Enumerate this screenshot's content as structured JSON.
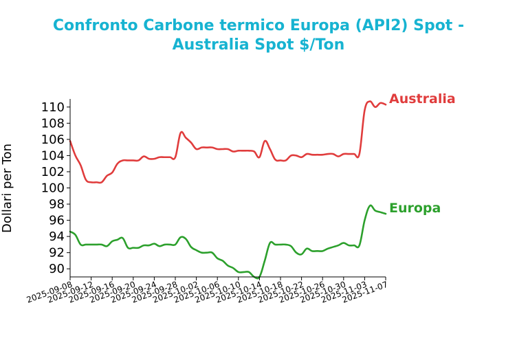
{
  "chart_data": {
    "type": "line",
    "title_lines": [
      "Confronto Carbone termico Europa (API2) Spot -",
      "Australia Spot $/Ton"
    ],
    "title_color": "#17b3d1",
    "xlabel": "",
    "ylabel": "Dollari per Ton",
    "ylim": [
      89,
      111
    ],
    "yticks": [
      90,
      92,
      94,
      96,
      98,
      100,
      102,
      104,
      106,
      108,
      110
    ],
    "xlim": [
      "2025-09-08",
      "2025-11-07"
    ],
    "xticks": [
      "2025-09-08",
      "2025-09-12",
      "2025-09-16",
      "2025-09-20",
      "2025-09-24",
      "2025-09-28",
      "2025-10-02",
      "2025-10-06",
      "2025-10-10",
      "2025-10-14",
      "2025-10-18",
      "2025-10-22",
      "2025-10-26",
      "2025-10-30",
      "2025-11-03",
      "2025-11-07"
    ],
    "grid": false,
    "series": [
      {
        "name": "Australia",
        "color": "#e03c3c",
        "points": [
          [
            "2025-09-08",
            105.8
          ],
          [
            "2025-09-09",
            104.0
          ],
          [
            "2025-09-10",
            102.8
          ],
          [
            "2025-09-11",
            101.0
          ],
          [
            "2025-09-12",
            100.7
          ],
          [
            "2025-09-13",
            100.7
          ],
          [
            "2025-09-14",
            100.7
          ],
          [
            "2025-09-15",
            101.5
          ],
          [
            "2025-09-16",
            101.9
          ],
          [
            "2025-09-17",
            103.0
          ],
          [
            "2025-09-18",
            103.4
          ],
          [
            "2025-09-19",
            103.4
          ],
          [
            "2025-09-20",
            103.4
          ],
          [
            "2025-09-21",
            103.4
          ],
          [
            "2025-09-22",
            103.9
          ],
          [
            "2025-09-23",
            103.6
          ],
          [
            "2025-09-24",
            103.6
          ],
          [
            "2025-09-25",
            103.8
          ],
          [
            "2025-09-26",
            103.8
          ],
          [
            "2025-09-27",
            103.8
          ],
          [
            "2025-09-28",
            103.8
          ],
          [
            "2025-09-29",
            106.8
          ],
          [
            "2025-09-30",
            106.2
          ],
          [
            "2025-10-01",
            105.6
          ],
          [
            "2025-10-02",
            104.8
          ],
          [
            "2025-10-03",
            105.0
          ],
          [
            "2025-10-04",
            105.0
          ],
          [
            "2025-10-05",
            105.0
          ],
          [
            "2025-10-06",
            104.8
          ],
          [
            "2025-10-07",
            104.8
          ],
          [
            "2025-10-08",
            104.8
          ],
          [
            "2025-10-09",
            104.5
          ],
          [
            "2025-10-10",
            104.6
          ],
          [
            "2025-10-11",
            104.6
          ],
          [
            "2025-10-12",
            104.6
          ],
          [
            "2025-10-13",
            104.5
          ],
          [
            "2025-10-14",
            103.8
          ],
          [
            "2025-10-15",
            105.8
          ],
          [
            "2025-10-16",
            104.8
          ],
          [
            "2025-10-17",
            103.5
          ],
          [
            "2025-10-18",
            103.4
          ],
          [
            "2025-10-19",
            103.4
          ],
          [
            "2025-10-20",
            104.0
          ],
          [
            "2025-10-21",
            104.0
          ],
          [
            "2025-10-22",
            103.8
          ],
          [
            "2025-10-23",
            104.2
          ],
          [
            "2025-10-24",
            104.1
          ],
          [
            "2025-10-25",
            104.1
          ],
          [
            "2025-10-26",
            104.1
          ],
          [
            "2025-10-27",
            104.2
          ],
          [
            "2025-10-28",
            104.2
          ],
          [
            "2025-10-29",
            103.9
          ],
          [
            "2025-10-30",
            104.2
          ],
          [
            "2025-10-31",
            104.2
          ],
          [
            "2025-11-01",
            104.2
          ],
          [
            "2025-11-02",
            104.2
          ],
          [
            "2025-11-03",
            109.6
          ],
          [
            "2025-11-04",
            110.7
          ],
          [
            "2025-11-05",
            110.0
          ],
          [
            "2025-11-06",
            110.5
          ],
          [
            "2025-11-07",
            110.3
          ]
        ]
      },
      {
        "name": "Europa",
        "color": "#2ca02c",
        "points": [
          [
            "2025-09-08",
            94.6
          ],
          [
            "2025-09-09",
            94.2
          ],
          [
            "2025-09-10",
            93.0
          ],
          [
            "2025-09-11",
            93.0
          ],
          [
            "2025-09-12",
            93.0
          ],
          [
            "2025-09-13",
            93.0
          ],
          [
            "2025-09-14",
            93.0
          ],
          [
            "2025-09-15",
            92.8
          ],
          [
            "2025-09-16",
            93.4
          ],
          [
            "2025-09-17",
            93.6
          ],
          [
            "2025-09-18",
            93.8
          ],
          [
            "2025-09-19",
            92.6
          ],
          [
            "2025-09-20",
            92.6
          ],
          [
            "2025-09-21",
            92.6
          ],
          [
            "2025-09-22",
            92.9
          ],
          [
            "2025-09-23",
            92.9
          ],
          [
            "2025-09-24",
            93.1
          ],
          [
            "2025-09-25",
            92.8
          ],
          [
            "2025-09-26",
            93.0
          ],
          [
            "2025-09-27",
            93.0
          ],
          [
            "2025-09-28",
            93.0
          ],
          [
            "2025-09-29",
            93.9
          ],
          [
            "2025-09-30",
            93.7
          ],
          [
            "2025-10-01",
            92.7
          ],
          [
            "2025-10-02",
            92.3
          ],
          [
            "2025-10-03",
            92.0
          ],
          [
            "2025-10-04",
            92.0
          ],
          [
            "2025-10-05",
            92.0
          ],
          [
            "2025-10-06",
            91.3
          ],
          [
            "2025-10-07",
            91.0
          ],
          [
            "2025-10-08",
            90.4
          ],
          [
            "2025-10-09",
            90.1
          ],
          [
            "2025-10-10",
            89.6
          ],
          [
            "2025-10-11",
            89.6
          ],
          [
            "2025-10-12",
            89.6
          ],
          [
            "2025-10-13",
            89.0
          ],
          [
            "2025-10-14",
            89.0
          ],
          [
            "2025-10-15",
            91.0
          ],
          [
            "2025-10-16",
            93.2
          ],
          [
            "2025-10-17",
            93.0
          ],
          [
            "2025-10-18",
            93.0
          ],
          [
            "2025-10-19",
            93.0
          ],
          [
            "2025-10-20",
            92.8
          ],
          [
            "2025-10-21",
            92.0
          ],
          [
            "2025-10-22",
            91.8
          ],
          [
            "2025-10-23",
            92.5
          ],
          [
            "2025-10-24",
            92.2
          ],
          [
            "2025-10-25",
            92.2
          ],
          [
            "2025-10-26",
            92.2
          ],
          [
            "2025-10-27",
            92.5
          ],
          [
            "2025-10-28",
            92.7
          ],
          [
            "2025-10-29",
            92.9
          ],
          [
            "2025-10-30",
            93.2
          ],
          [
            "2025-10-31",
            92.9
          ],
          [
            "2025-11-01",
            92.9
          ],
          [
            "2025-11-02",
            92.9
          ],
          [
            "2025-11-03",
            96.0
          ],
          [
            "2025-11-04",
            97.8
          ],
          [
            "2025-11-05",
            97.2
          ],
          [
            "2025-11-06",
            97.0
          ],
          [
            "2025-11-07",
            96.8
          ]
        ]
      }
    ]
  }
}
